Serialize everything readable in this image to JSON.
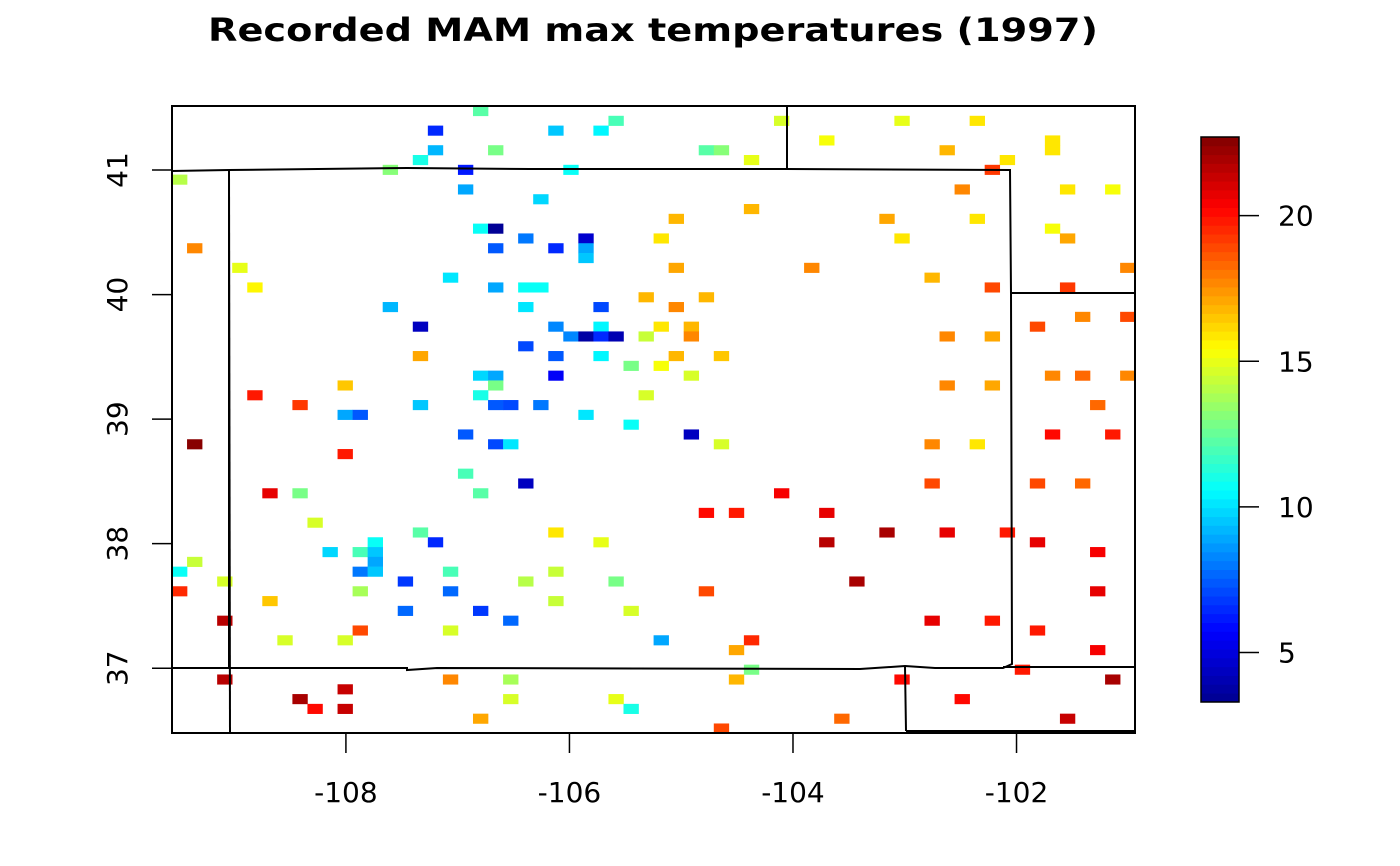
{
  "chart_data": {
    "type": "heatmap",
    "title": "Recorded MAM max temperatures (1997)",
    "xlabel": "",
    "ylabel": "",
    "xlim": [
      -109.556,
      -100.94
    ],
    "ylim": [
      36.48,
      41.514
    ],
    "x_ticks": [
      {
        "value": -108,
        "label": "-108"
      },
      {
        "value": -106,
        "label": "-106"
      },
      {
        "value": -104,
        "label": "-104"
      },
      {
        "value": -102,
        "label": "-102"
      }
    ],
    "y_ticks": [
      {
        "value": 37,
        "label": "37"
      },
      {
        "value": 38,
        "label": "38"
      },
      {
        "value": 39,
        "label": "39"
      },
      {
        "value": 40,
        "label": "40"
      },
      {
        "value": 41,
        "label": "41"
      }
    ],
    "colorbar": {
      "zlim": [
        3.3,
        22.7
      ],
      "palette": [
        "#00008F",
        "#0000FF",
        "#00FFFF",
        "#FFFF00",
        "#FF0000",
        "#800000"
      ],
      "ticks": [
        {
          "value": 5,
          "label": "5"
        },
        {
          "value": 10,
          "label": "10"
        },
        {
          "value": 15,
          "label": "15"
        },
        {
          "value": 20,
          "label": "20"
        }
      ],
      "placement": "right"
    },
    "grid": {
      "lon_min": -109.556,
      "lat_max": 41.514,
      "dlon": 0.13465,
      "dlat": 0.07869,
      "ncol": 64,
      "nrow": 64
    },
    "cells_format": [
      "lon_index",
      "lat_index_from_top",
      "value"
    ],
    "cells": [
      [
        20,
        0,
        12.3
      ],
      [
        29,
        1,
        11.8
      ],
      [
        17,
        2,
        6.5
      ],
      [
        25,
        2,
        9.5
      ],
      [
        28,
        2,
        10.5
      ],
      [
        17,
        4,
        9.2
      ],
      [
        21,
        4,
        12.8
      ],
      [
        16,
        5,
        11
      ],
      [
        14,
        6,
        13.2
      ],
      [
        19,
        6,
        6.2
      ],
      [
        26,
        6,
        10.7
      ],
      [
        0,
        7,
        14.2
      ],
      [
        19,
        8,
        8.9
      ],
      [
        24,
        9,
        9.8
      ],
      [
        20,
        12,
        10.8
      ],
      [
        21,
        12,
        3.6
      ],
      [
        23,
        13,
        8
      ],
      [
        27,
        13,
        4.6
      ],
      [
        1,
        14,
        17.8
      ],
      [
        21,
        14,
        7.3
      ],
      [
        25,
        14,
        6.5
      ],
      [
        27,
        14,
        8.9
      ],
      [
        27,
        15,
        9.5
      ],
      [
        4,
        16,
        15
      ],
      [
        18,
        17,
        10
      ],
      [
        5,
        18,
        15.5
      ],
      [
        21,
        18,
        8.9
      ],
      [
        23,
        18,
        10.8
      ],
      [
        24,
        18,
        10.8
      ],
      [
        31,
        19,
        16.8
      ],
      [
        14,
        20,
        9.2
      ],
      [
        23,
        20,
        10
      ],
      [
        28,
        20,
        7
      ],
      [
        16,
        22,
        4.4
      ],
      [
        25,
        22,
        8.4
      ],
      [
        28,
        22,
        10.4
      ],
      [
        26,
        23,
        8.4
      ],
      [
        27,
        23,
        3.9
      ],
      [
        28,
        23,
        6.5
      ],
      [
        29,
        23,
        4.1
      ],
      [
        31,
        23,
        14.3
      ],
      [
        23,
        24,
        7
      ],
      [
        16,
        25,
        17.2
      ],
      [
        25,
        25,
        7.3
      ],
      [
        28,
        25,
        10.4
      ],
      [
        30,
        26,
        12.8
      ],
      [
        20,
        27,
        9.8
      ],
      [
        21,
        27,
        8.9
      ],
      [
        25,
        27,
        5.5
      ],
      [
        11,
        28,
        16.5
      ],
      [
        21,
        28,
        12.8
      ],
      [
        5,
        29,
        19.7
      ],
      [
        20,
        29,
        11
      ],
      [
        31,
        29,
        14.8
      ],
      [
        8,
        30,
        19.1
      ],
      [
        16,
        30,
        9.5
      ],
      [
        21,
        30,
        7.3
      ],
      [
        22,
        30,
        7
      ],
      [
        24,
        30,
        8
      ],
      [
        11,
        31,
        8.9
      ],
      [
        12,
        31,
        7.3
      ],
      [
        27,
        31,
        10
      ],
      [
        30,
        32,
        10.8
      ],
      [
        19,
        33,
        7.3
      ],
      [
        1,
        34,
        22.6
      ],
      [
        21,
        34,
        7
      ],
      [
        22,
        34,
        10
      ],
      [
        11,
        35,
        19.7
      ],
      [
        19,
        37,
        11.8
      ],
      [
        23,
        38,
        4.4
      ],
      [
        6,
        39,
        20.6
      ],
      [
        8,
        39,
        13
      ],
      [
        20,
        39,
        12.3
      ],
      [
        9,
        42,
        14.8
      ],
      [
        16,
        43,
        12.3
      ],
      [
        25,
        43,
        15.8
      ],
      [
        17,
        44,
        6.5
      ],
      [
        28,
        44,
        15
      ],
      [
        13,
        44,
        10.8
      ],
      [
        10,
        45,
        9.8
      ],
      [
        12,
        45,
        11.8
      ],
      [
        13,
        45,
        9.5
      ],
      [
        13,
        46,
        8.9
      ],
      [
        1,
        46,
        14.4
      ],
      [
        0,
        47,
        10.8
      ],
      [
        12,
        47,
        8
      ],
      [
        13,
        47,
        9.5
      ],
      [
        18,
        47,
        11.8
      ],
      [
        25,
        47,
        14.4
      ],
      [
        3,
        48,
        14.8
      ],
      [
        15,
        48,
        6.7
      ],
      [
        23,
        48,
        14.2
      ],
      [
        29,
        48,
        13
      ],
      [
        0,
        49,
        19.4
      ],
      [
        12,
        49,
        13.8
      ],
      [
        18,
        49,
        7.7
      ],
      [
        6,
        50,
        16.5
      ],
      [
        25,
        50,
        14.4
      ],
      [
        15,
        51,
        7.7
      ],
      [
        20,
        51,
        6.7
      ],
      [
        30,
        51,
        14.6
      ],
      [
        3,
        52,
        21.5
      ],
      [
        22,
        52,
        7.7
      ],
      [
        12,
        53,
        18.8
      ],
      [
        18,
        53,
        14.6
      ],
      [
        7,
        54,
        14.8
      ],
      [
        11,
        54,
        14.6
      ],
      [
        3,
        58,
        21.5
      ],
      [
        11,
        59,
        21.2
      ],
      [
        18,
        58,
        17.8
      ],
      [
        22,
        58,
        13.8
      ],
      [
        8,
        60,
        21.8
      ],
      [
        22,
        60,
        14.8
      ],
      [
        29,
        60,
        15
      ],
      [
        9,
        61,
        20
      ],
      [
        11,
        61,
        21.2
      ],
      [
        30,
        61,
        11
      ],
      [
        20,
        62,
        17.2
      ],
      [
        40,
        1,
        14.6
      ],
      [
        48,
        1,
        15
      ],
      [
        53,
        1,
        15.8
      ],
      [
        43,
        3,
        15.4
      ],
      [
        58,
        3,
        15.8
      ],
      [
        58,
        4,
        15.8
      ],
      [
        35,
        4,
        12.3
      ],
      [
        36,
        4,
        13.1
      ],
      [
        51,
        4,
        16.8
      ],
      [
        38,
        5,
        15
      ],
      [
        55,
        5,
        15.8
      ],
      [
        54,
        6,
        19.1
      ],
      [
        52,
        8,
        17.8
      ],
      [
        59,
        8,
        15.8
      ],
      [
        62,
        8,
        15.4
      ],
      [
        38,
        10,
        16.8
      ],
      [
        33,
        11,
        16.8
      ],
      [
        47,
        11,
        17.2
      ],
      [
        53,
        11,
        16
      ],
      [
        58,
        12,
        15.4
      ],
      [
        32,
        13,
        16
      ],
      [
        48,
        13,
        16
      ],
      [
        59,
        13,
        17.2
      ],
      [
        33,
        16,
        17.2
      ],
      [
        42,
        16,
        17.8
      ],
      [
        63,
        16,
        17.8
      ],
      [
        50,
        17,
        16.8
      ],
      [
        54,
        18,
        18.8
      ],
      [
        59,
        18,
        19.1
      ],
      [
        35,
        19,
        16.8
      ],
      [
        33,
        20,
        17.8
      ],
      [
        60,
        21,
        17.8
      ],
      [
        63,
        21,
        18.8
      ],
      [
        32,
        22,
        15.8
      ],
      [
        34,
        22,
        16.8
      ],
      [
        57,
        22,
        18.8
      ],
      [
        34,
        23,
        17.8
      ],
      [
        51,
        23,
        17.8
      ],
      [
        54,
        23,
        17.2
      ],
      [
        33,
        25,
        16.8
      ],
      [
        36,
        25,
        16.5
      ],
      [
        32,
        26,
        15.4
      ],
      [
        34,
        27,
        14.8
      ],
      [
        51,
        28,
        17.8
      ],
      [
        54,
        28,
        17.2
      ],
      [
        58,
        27,
        17.8
      ],
      [
        60,
        27,
        18.3
      ],
      [
        63,
        27,
        17.8
      ],
      [
        61,
        30,
        18.3
      ],
      [
        34,
        33,
        4.4
      ],
      [
        36,
        34,
        14.6
      ],
      [
        50,
        34,
        17.8
      ],
      [
        53,
        34,
        16
      ],
      [
        58,
        33,
        20
      ],
      [
        62,
        33,
        19.7
      ],
      [
        50,
        38,
        18.8
      ],
      [
        57,
        38,
        18.8
      ],
      [
        60,
        38,
        18.3
      ],
      [
        40,
        39,
        20.3
      ],
      [
        35,
        41,
        20
      ],
      [
        37,
        41,
        19.7
      ],
      [
        43,
        41,
        20.6
      ],
      [
        47,
        43,
        22
      ],
      [
        51,
        43,
        20.6
      ],
      [
        55,
        43,
        19.7
      ],
      [
        43,
        44,
        21.5
      ],
      [
        57,
        44,
        20.6
      ],
      [
        61,
        45,
        20.3
      ],
      [
        45,
        48,
        21.8
      ],
      [
        35,
        49,
        18.8
      ],
      [
        61,
        49,
        20.6
      ],
      [
        50,
        52,
        20.6
      ],
      [
        54,
        52,
        19.7
      ],
      [
        57,
        53,
        19.7
      ],
      [
        32,
        54,
        8.9
      ],
      [
        38,
        54,
        19.4
      ],
      [
        37,
        55,
        17.2
      ],
      [
        61,
        55,
        20.3
      ],
      [
        38,
        57,
        12.8
      ],
      [
        56,
        57,
        19.7
      ],
      [
        37,
        58,
        16.8
      ],
      [
        48,
        58,
        20
      ],
      [
        62,
        58,
        21.8
      ],
      [
        52,
        60,
        20
      ],
      [
        44,
        62,
        18.3
      ],
      [
        59,
        62,
        21.2
      ],
      [
        36,
        63,
        18.8
      ]
    ]
  }
}
